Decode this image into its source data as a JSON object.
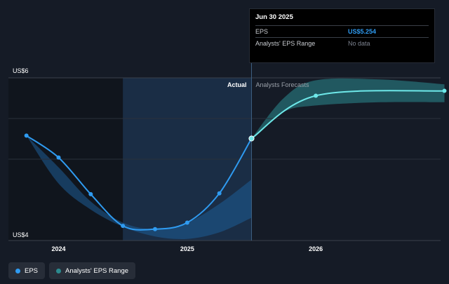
{
  "chart_data": {
    "type": "line",
    "y_axis": {
      "min": 4,
      "max": 6,
      "tick_labels": [
        "US$6",
        "US$4"
      ]
    },
    "x_axis": {
      "tick_labels": [
        "2024",
        "2025",
        "2026"
      ]
    },
    "sections": {
      "actual_label": "Actual",
      "forecast_label": "Analysts Forecasts"
    },
    "eps_actual": {
      "name": "EPS",
      "x": [
        2023.75,
        2024.0,
        2024.25,
        2024.5,
        2024.75,
        2025.0,
        2025.25,
        2025.5
      ],
      "y": [
        5.29,
        5.02,
        4.57,
        4.18,
        4.14,
        4.22,
        4.58,
        5.254
      ]
    },
    "eps_forecast": {
      "name": "EPS (forecast)",
      "x": [
        2025.5,
        2026.0,
        2027.0
      ],
      "y": [
        5.254,
        5.78,
        5.84
      ]
    },
    "range_past": {
      "name": "Analysts' EPS Range",
      "x": [
        2023.75,
        2024.0,
        2024.25,
        2024.5,
        2024.75,
        2025.0,
        2025.25,
        2025.5
      ],
      "high": [
        5.29,
        4.9,
        4.48,
        4.22,
        4.14,
        4.22,
        4.45,
        4.75
      ],
      "low": [
        5.29,
        4.7,
        4.38,
        4.17,
        4.05,
        4.02,
        4.1,
        4.28
      ]
    },
    "range_forecast": {
      "name": "Analysts' EPS Range",
      "x": [
        2025.5,
        2025.75,
        2026.0,
        2026.5,
        2027.0
      ],
      "high": [
        5.254,
        5.75,
        5.97,
        5.98,
        5.92
      ],
      "low": [
        5.254,
        5.58,
        5.66,
        5.7,
        5.7
      ]
    }
  },
  "tooltip": {
    "date": "Jun 30 2025",
    "eps_label": "EPS",
    "eps_value": "US$5.254",
    "range_label": "Analysts' EPS Range",
    "range_value": "No data"
  },
  "legend": [
    {
      "label": "EPS",
      "color": "#2f9bf1"
    },
    {
      "label": "Analysts' EPS Range",
      "color": "#2b8a8f"
    }
  ],
  "colors": {
    "eps_line": "#2f9bf1",
    "forecast_line": "#6ee8e9",
    "range_past_fill": "#1e5d96",
    "range_forecast_fill": "#2b8a8f"
  }
}
